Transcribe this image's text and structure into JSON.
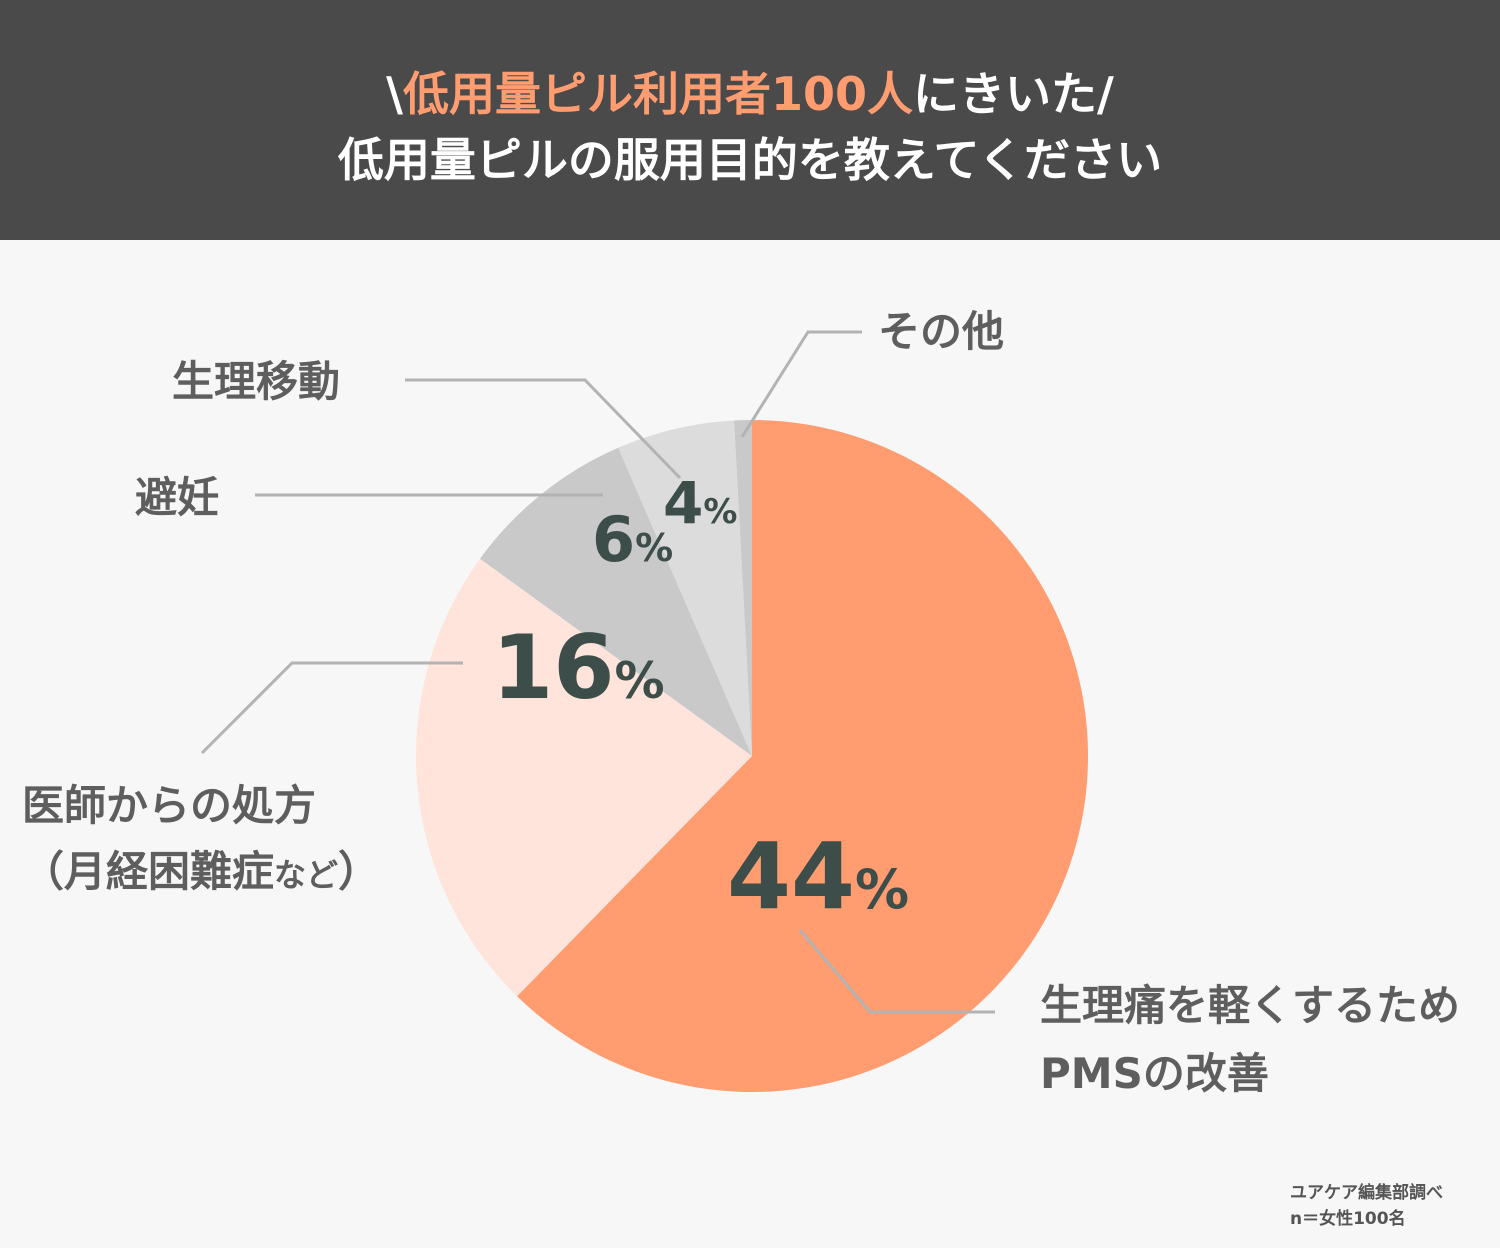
{
  "header": {
    "line1_pre": "\\",
    "line1_accent": "低用量ピル利用者100人",
    "line1_post": "にきいた/",
    "line2": "低用量ピルの服用目的を教えてください"
  },
  "labels": {
    "pms_line1": "生理痛を軽くするため",
    "pms_line2": "PMSの改善",
    "prescription_line1": "医師からの処方",
    "prescription_line2_main": "（月経困難症",
    "prescription_line2_small": "など",
    "prescription_line2_close": "）",
    "contraception": "避妊",
    "period_shift": "生理移動",
    "other": "その他"
  },
  "source": {
    "line1": "ユアケア編集部調べ",
    "line2": "n＝女性100名"
  },
  "colors": {
    "header_bg": "#4a4a4a",
    "accent": "#ff9c70",
    "slice_pms": "#ff9c70",
    "slice_prescription": "#ffe4db",
    "slice_contraception": "#c9c9c9",
    "slice_period": "#dcdcdc",
    "slice_other": "#c9c9c9",
    "leader": "#b3b3b3"
  },
  "chart_data": {
    "type": "pie",
    "start_angle_deg": 0,
    "slices": [
      {
        "label": "生理痛を軽くするため PMSの改善",
        "value": 44,
        "pct_text": "44"
      },
      {
        "label": "医師からの処方（月経困難症など）",
        "value": 16,
        "pct_text": "16"
      },
      {
        "label": "避妊",
        "value": 6,
        "pct_text": "6"
      },
      {
        "label": "生理移動",
        "value": 4,
        "pct_text": "4"
      },
      {
        "label": "その他",
        "value": 0.6,
        "pct_text": ""
      }
    ],
    "percent_sign": "%"
  }
}
